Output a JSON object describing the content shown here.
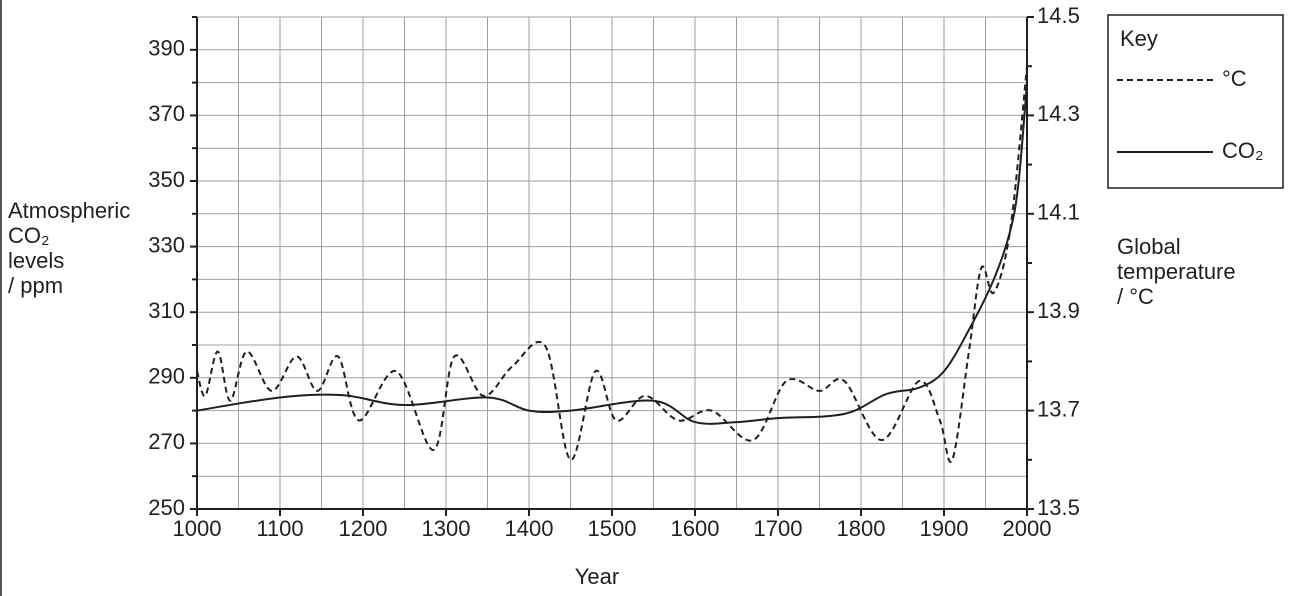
{
  "chart_data": {
    "type": "line",
    "x_label": "Year",
    "y_label": [
      "Atmospheric",
      "CO₂",
      "levels",
      "/ ppm"
    ],
    "y2_label": [
      "Global",
      "temperature",
      "/ °C"
    ],
    "legend_title": "Key",
    "legend": "top-right",
    "grid": true,
    "xlim": [
      1000,
      2000
    ],
    "xticks": [
      1000,
      1100,
      1200,
      1300,
      1400,
      1500,
      1600,
      1700,
      1800,
      1900,
      2000
    ],
    "xminorticks": [
      1050,
      1150,
      1250,
      1350,
      1450,
      1550,
      1650,
      1750,
      1850,
      1950
    ],
    "ylim": [
      250,
      400
    ],
    "yticks": [
      250,
      270,
      290,
      310,
      330,
      350,
      370,
      390
    ],
    "yminorticks": [
      260,
      280,
      300,
      320,
      340,
      360,
      380,
      400
    ],
    "y2lim": [
      13.5,
      14.5
    ],
    "y2ticks": [
      13.5,
      13.7,
      13.9,
      14.1,
      14.3,
      14.5
    ],
    "y2minorticks": [
      13.6,
      13.8,
      14.0,
      14.2,
      14.4
    ],
    "series": [
      {
        "name": "°C",
        "color": "#231f20",
        "dash": "6,4",
        "axis": "y2",
        "x": [
          1000,
          1010,
          1025,
          1040,
          1060,
          1090,
          1120,
          1145,
          1170,
          1195,
          1240,
          1285,
          1310,
          1345,
          1380,
          1420,
          1450,
          1480,
          1505,
          1540,
          1580,
          1620,
          1670,
          1710,
          1750,
          1780,
          1825,
          1870,
          1895,
          1910,
          1930,
          1945,
          1960,
          1980,
          2000
        ],
        "values": [
          13.78,
          13.73,
          13.82,
          13.72,
          13.82,
          13.74,
          13.81,
          13.74,
          13.81,
          13.68,
          13.78,
          13.62,
          13.81,
          13.73,
          13.79,
          13.83,
          13.6,
          13.78,
          13.68,
          13.73,
          13.68,
          13.7,
          13.64,
          13.76,
          13.74,
          13.76,
          13.64,
          13.76,
          13.68,
          13.6,
          13.82,
          13.99,
          13.94,
          14.07,
          14.4
        ]
      },
      {
        "name": "CO₂",
        "color": "#231f20",
        "dash": "none",
        "x": [
          1000,
          1100,
          1175,
          1250,
          1350,
          1400,
          1450,
          1550,
          1600,
          1650,
          1700,
          1780,
          1830,
          1870,
          1900,
          1930,
          1960,
          1980,
          1990,
          2000
        ],
        "values": [
          280,
          284,
          284.7,
          281.7,
          284,
          280,
          280,
          283,
          276.5,
          276.5,
          277.7,
          279,
          285,
          287,
          292,
          304.6,
          320,
          335,
          350,
          380
        ]
      }
    ]
  }
}
